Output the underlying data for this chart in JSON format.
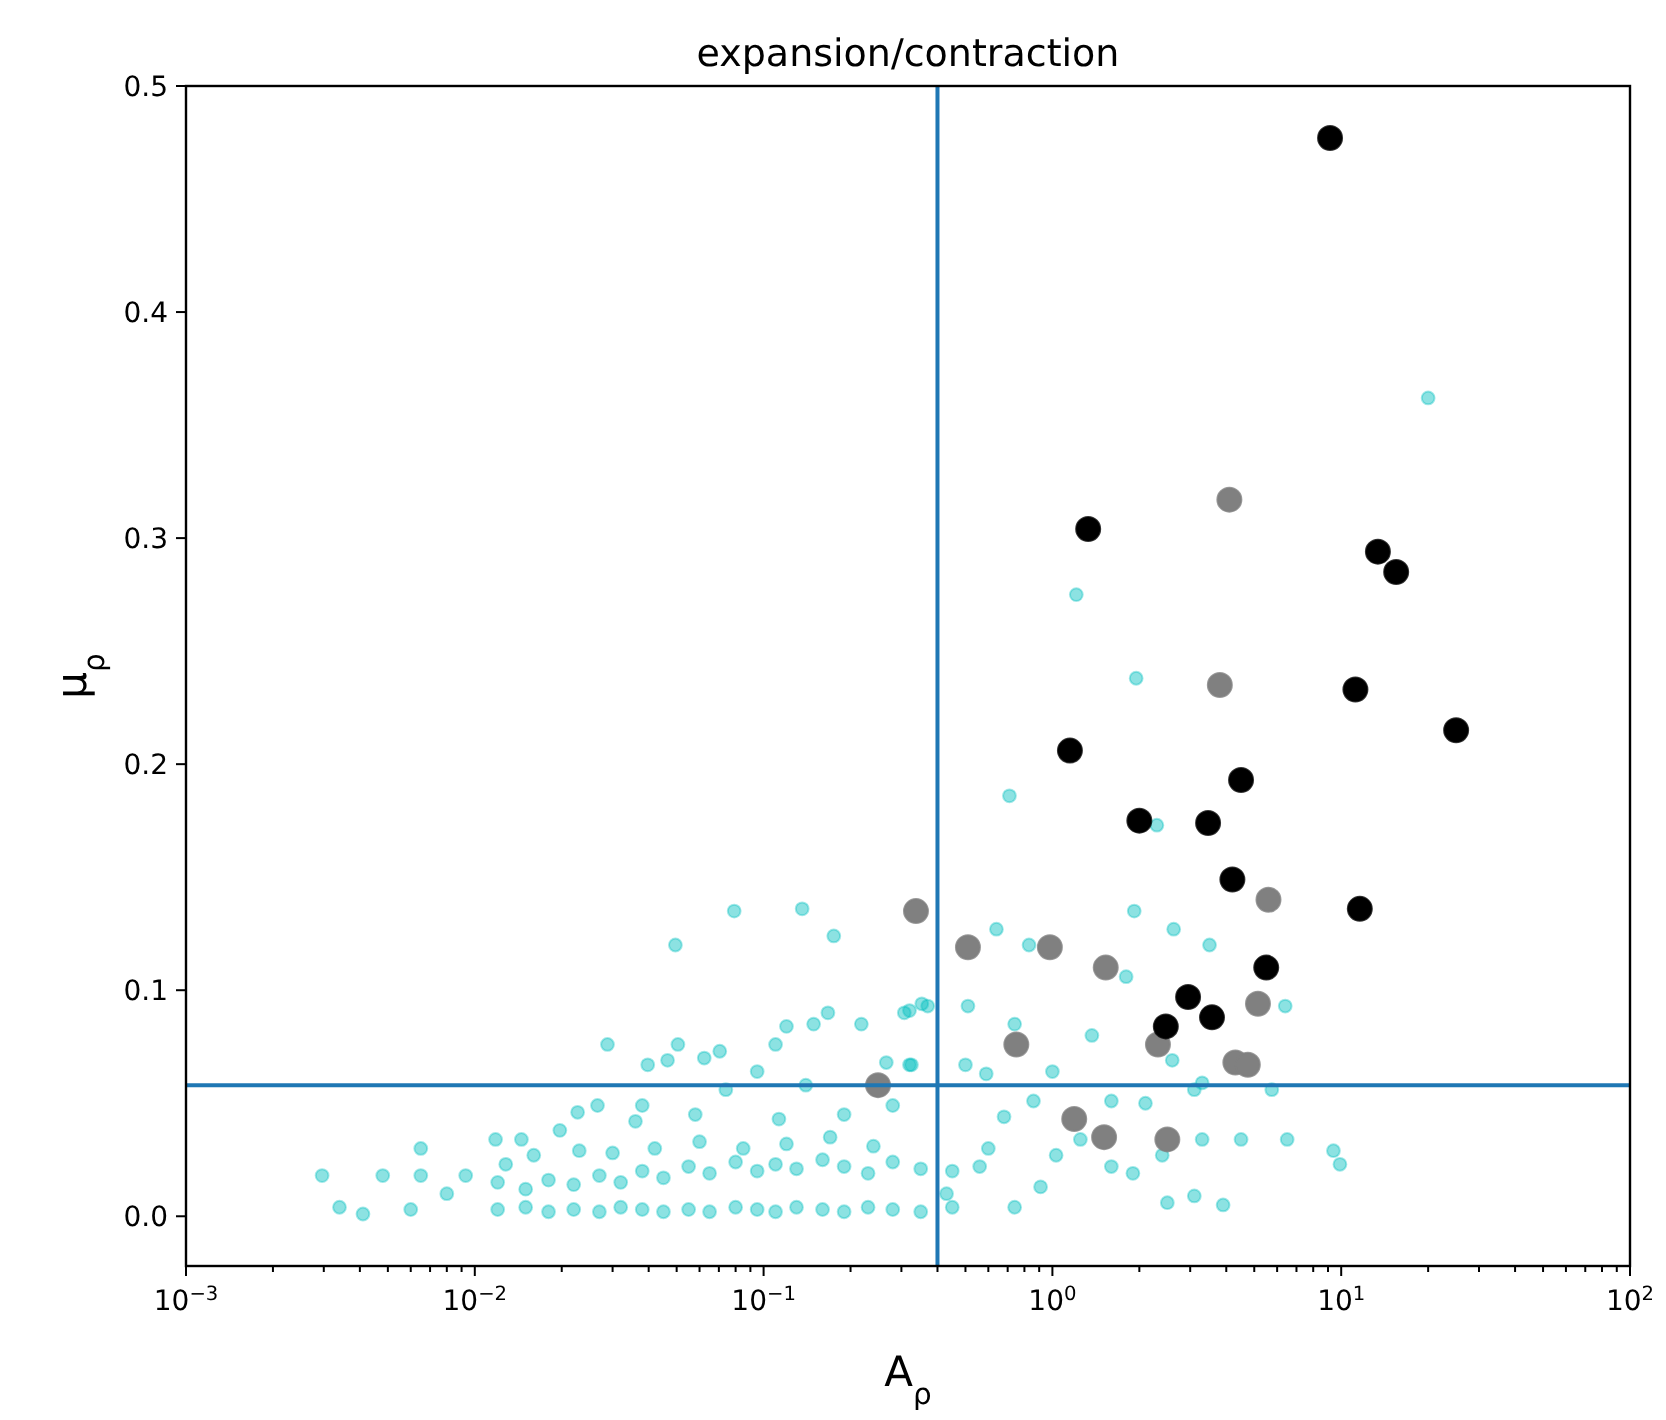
{
  "chart_data": {
    "type": "scatter",
    "title": "expansion/contraction",
    "xlabel": "A$_{ρ}$",
    "ylabel": "μ$_{ρ}$",
    "log": "x",
    "grid": false,
    "marker": "circle",
    "xlim": [
      0.001,
      100
    ],
    "ylim": [
      -0.022,
      0.5
    ],
    "xticks": [
      {
        "value": 0.001,
        "label": "10$^{−3}$"
      },
      {
        "value": 0.01,
        "label": "10$^{−2}$"
      },
      {
        "value": 0.1,
        "label": "10$^{−1}$"
      },
      {
        "value": 1,
        "label": "10$^{0}$"
      },
      {
        "value": 10,
        "label": "10$^{1}$"
      },
      {
        "value": 100,
        "label": "10$^{2}$"
      },
      {
        "value": 0.002,
        "label": null
      },
      {
        "value": 0.003,
        "label": null
      },
      {
        "value": 0.004,
        "label": null
      },
      {
        "value": 0.005,
        "label": null
      },
      {
        "value": 0.006,
        "label": null
      },
      {
        "value": 0.007,
        "label": null
      },
      {
        "value": 0.008,
        "label": null
      },
      {
        "value": 0.009,
        "label": null
      },
      {
        "value": 0.02,
        "label": null
      },
      {
        "value": 0.03,
        "label": null
      },
      {
        "value": 0.04,
        "label": null
      },
      {
        "value": 0.05,
        "label": null
      },
      {
        "value": 0.06,
        "label": null
      },
      {
        "value": 0.07,
        "label": null
      },
      {
        "value": 0.08,
        "label": null
      },
      {
        "value": 0.09,
        "label": null
      },
      {
        "value": 0.2,
        "label": null
      },
      {
        "value": 0.3,
        "label": null
      },
      {
        "value": 0.4,
        "label": null
      },
      {
        "value": 0.5,
        "label": null
      },
      {
        "value": 0.6,
        "label": null
      },
      {
        "value": 0.7,
        "label": null
      },
      {
        "value": 0.8,
        "label": null
      },
      {
        "value": 0.9,
        "label": null
      },
      {
        "value": 2,
        "label": null
      },
      {
        "value": 3,
        "label": null
      },
      {
        "value": 4,
        "label": null
      },
      {
        "value": 5,
        "label": null
      },
      {
        "value": 6,
        "label": null
      },
      {
        "value": 7,
        "label": null
      },
      {
        "value": 8,
        "label": null
      },
      {
        "value": 9,
        "label": null
      },
      {
        "value": 20,
        "label": null
      },
      {
        "value": 30,
        "label": null
      },
      {
        "value": 40,
        "label": null
      },
      {
        "value": 50,
        "label": null
      },
      {
        "value": 60,
        "label": null
      },
      {
        "value": 70,
        "label": null
      },
      {
        "value": 80,
        "label": null
      },
      {
        "value": 90,
        "label": null
      }
    ],
    "yticks": [
      {
        "value": 0,
        "label": "0.0"
      },
      0.1,
      0.2,
      0.3,
      0.4,
      0.5
    ],
    "ref_lines": [
      {
        "axis": "x",
        "value": 0.4,
        "color": "#1f77b4"
      },
      {
        "axis": "y",
        "value": 0.058,
        "color": "#1f77b4"
      }
    ],
    "series": [
      {
        "color": "#00bfbf",
        "x": [
          20,
          1.21,
          1.95,
          0.71,
          1.92,
          2.63,
          0.64,
          0.83,
          3.5,
          2.3,
          1.8,
          6.4,
          0.32,
          0.37,
          0.51,
          0.74,
          5.75,
          6.5,
          9.4,
          9.9,
          4.5,
          3.3,
          3.9,
          0.00296,
          0.0034,
          0.0041,
          0.0048,
          0.0065,
          0.0065,
          0.0093,
          0.0118,
          0.0145,
          0.0128,
          0.0197,
          0.0227,
          0.0266,
          0.0288,
          0.0397,
          0.0465,
          0.0505,
          0.0495,
          0.0623,
          0.0705,
          0.0791,
          0.11,
          0.12,
          0.136,
          0.149,
          0.167,
          0.175,
          0.218,
          0.307,
          0.353,
          0.266,
          0.325,
          0.095,
          0.14,
          0.038,
          0.074,
          0.058,
          0.113,
          0.19,
          0.28,
          0.036,
          0.023,
          0.016,
          0.008,
          0.006,
          0.5,
          0.32,
          0.59,
          1.0,
          1.37,
          2.6,
          3.1,
          3.3,
          1.6,
          2.1,
          0.86,
          0.68,
          1.25,
          1.9,
          3.1,
          2.5,
          2.4,
          0.91,
          0.56,
          0.74,
          0.43,
          1.03,
          1.6,
          0.012,
          0.015,
          0.018,
          0.022,
          0.027,
          0.032,
          0.038,
          0.045,
          0.055,
          0.065,
          0.08,
          0.095,
          0.11,
          0.13,
          0.16,
          0.19,
          0.23,
          0.28,
          0.35,
          0.45,
          0.012,
          0.015,
          0.018,
          0.022,
          0.027,
          0.032,
          0.038,
          0.045,
          0.055,
          0.065,
          0.08,
          0.095,
          0.11,
          0.13,
          0.16,
          0.19,
          0.23,
          0.28,
          0.35,
          0.45,
          0.03,
          0.042,
          0.06,
          0.085,
          0.12,
          0.17,
          0.24,
          0.6
        ],
        "values": [
          0.362,
          0.275,
          0.238,
          0.186,
          0.135,
          0.127,
          0.127,
          0.12,
          0.12,
          0.173,
          0.106,
          0.093,
          0.091,
          0.093,
          0.093,
          0.085,
          0.056,
          0.034,
          0.029,
          0.023,
          0.034,
          0.034,
          0.005,
          0.018,
          0.004,
          0.001,
          0.018,
          0.03,
          0.018,
          0.018,
          0.034,
          0.034,
          0.023,
          0.038,
          0.046,
          0.049,
          0.076,
          0.067,
          0.069,
          0.076,
          0.12,
          0.07,
          0.073,
          0.135,
          0.076,
          0.084,
          0.136,
          0.085,
          0.09,
          0.124,
          0.085,
          0.09,
          0.094,
          0.068,
          0.067,
          0.064,
          0.058,
          0.049,
          0.056,
          0.045,
          0.043,
          0.045,
          0.049,
          0.042,
          0.029,
          0.027,
          0.01,
          0.003,
          0.067,
          0.067,
          0.063,
          0.064,
          0.08,
          0.069,
          0.056,
          0.059,
          0.051,
          0.05,
          0.051,
          0.044,
          0.034,
          0.019,
          0.009,
          0.006,
          0.027,
          0.013,
          0.022,
          0.004,
          0.01,
          0.027,
          0.022,
          0.003,
          0.004,
          0.002,
          0.003,
          0.002,
          0.004,
          0.003,
          0.002,
          0.003,
          0.002,
          0.004,
          0.003,
          0.002,
          0.004,
          0.003,
          0.002,
          0.004,
          0.003,
          0.002,
          0.004,
          0.015,
          0.012,
          0.016,
          0.014,
          0.018,
          0.015,
          0.02,
          0.017,
          0.022,
          0.019,
          0.024,
          0.02,
          0.023,
          0.021,
          0.025,
          0.022,
          0.019,
          0.024,
          0.021,
          0.02,
          0.028,
          0.03,
          0.033,
          0.03,
          0.032,
          0.035,
          0.031,
          0.03
        ]
      },
      {
        "color": "#808080",
        "x": [
          4.1,
          3.8,
          0.337,
          0.51,
          0.98,
          1.53,
          5.6,
          5.15,
          0.75,
          2.32,
          4.3,
          4.75,
          0.249,
          1.19,
          1.51,
          2.5
        ],
        "values": [
          0.317,
          0.235,
          0.135,
          0.119,
          0.119,
          0.11,
          0.14,
          0.094,
          0.076,
          0.076,
          0.068,
          0.067,
          0.058,
          0.043,
          0.035,
          0.034
        ]
      },
      {
        "color": "#000000",
        "x": [
          9.15,
          1.33,
          13.4,
          15.5,
          11.2,
          25,
          1.15,
          4.5,
          2.0,
          3.46,
          4.2,
          11.6,
          5.5,
          2.95,
          3.57,
          2.47
        ],
        "values": [
          0.477,
          0.304,
          0.294,
          0.285,
          0.233,
          0.215,
          0.206,
          0.193,
          0.175,
          0.174,
          0.149,
          0.136,
          0.11,
          0.097,
          0.088,
          0.084
        ]
      }
    ]
  }
}
